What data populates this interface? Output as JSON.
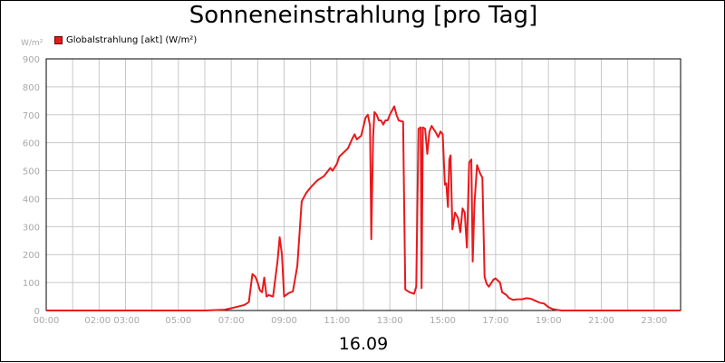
{
  "title": "Sonneneinstrahlung [pro Tag]",
  "unit_label": "W/m²",
  "legend_label": "Globalstrahlung [akt] (W/m²)",
  "date_label": "16.09",
  "colors": {
    "series": "#e8191c",
    "grid": "#c8c8c8",
    "axis_text": "#a8a8a8"
  },
  "chart_data": {
    "type": "line",
    "title": "Sonneneinstrahlung [pro Tag]",
    "ylabel": "W/m²",
    "ylim": [
      0,
      900
    ],
    "yticks": [
      0,
      100,
      200,
      300,
      400,
      500,
      600,
      700,
      800,
      900
    ],
    "xlim": [
      "00:00",
      "24:00"
    ],
    "xticks": [
      "00:00",
      "02:00 03:00",
      "05:00",
      "07:00",
      "09:00",
      "11:00",
      "13:00",
      "15:00",
      "17:00",
      "19:00",
      "21:00",
      "23:00"
    ],
    "grid": true,
    "legend_placement": "top-left",
    "series": [
      {
        "name": "Globalstrahlung [akt] (W/m²)",
        "points": [
          [
            "00:00",
            0
          ],
          [
            "06:00",
            0
          ],
          [
            "06:45",
            3
          ],
          [
            "07:00",
            8
          ],
          [
            "07:15",
            14
          ],
          [
            "07:30",
            20
          ],
          [
            "07:40",
            30
          ],
          [
            "07:48",
            130
          ],
          [
            "07:55",
            120
          ],
          [
            "08:00",
            100
          ],
          [
            "08:05",
            72
          ],
          [
            "08:10",
            65
          ],
          [
            "08:15",
            118
          ],
          [
            "08:20",
            50
          ],
          [
            "08:25",
            55
          ],
          [
            "08:35",
            50
          ],
          [
            "08:45",
            175
          ],
          [
            "08:50",
            262
          ],
          [
            "08:55",
            200
          ],
          [
            "09:00",
            50
          ],
          [
            "09:10",
            62
          ],
          [
            "09:20",
            68
          ],
          [
            "09:30",
            160
          ],
          [
            "09:40",
            390
          ],
          [
            "09:50",
            420
          ],
          [
            "10:00",
            440
          ],
          [
            "10:15",
            465
          ],
          [
            "10:30",
            480
          ],
          [
            "10:45",
            510
          ],
          [
            "10:50",
            500
          ],
          [
            "11:00",
            525
          ],
          [
            "11:05",
            550
          ],
          [
            "11:15",
            565
          ],
          [
            "11:25",
            580
          ],
          [
            "11:35",
            615
          ],
          [
            "11:40",
            630
          ],
          [
            "11:45",
            612
          ],
          [
            "11:55",
            625
          ],
          [
            "12:05",
            690
          ],
          [
            "12:10",
            700
          ],
          [
            "12:15",
            660
          ],
          [
            "12:18",
            255
          ],
          [
            "12:22",
            620
          ],
          [
            "12:25",
            710
          ],
          [
            "12:30",
            700
          ],
          [
            "12:35",
            680
          ],
          [
            "12:40",
            680
          ],
          [
            "12:45",
            665
          ],
          [
            "12:50",
            680
          ],
          [
            "12:55",
            680
          ],
          [
            "13:00",
            700
          ],
          [
            "13:10",
            730
          ],
          [
            "13:15",
            700
          ],
          [
            "13:20",
            680
          ],
          [
            "13:30",
            675
          ],
          [
            "13:35",
            75
          ],
          [
            "13:45",
            65
          ],
          [
            "13:55",
            60
          ],
          [
            "14:00",
            85
          ],
          [
            "14:05",
            650
          ],
          [
            "14:10",
            655
          ],
          [
            "14:12",
            80
          ],
          [
            "14:15",
            655
          ],
          [
            "14:20",
            650
          ],
          [
            "14:25",
            560
          ],
          [
            "14:30",
            640
          ],
          [
            "14:35",
            660
          ],
          [
            "14:45",
            635
          ],
          [
            "14:50",
            620
          ],
          [
            "14:55",
            640
          ],
          [
            "15:00",
            630
          ],
          [
            "15:05",
            450
          ],
          [
            "15:08",
            455
          ],
          [
            "15:12",
            370
          ],
          [
            "15:15",
            540
          ],
          [
            "15:18",
            555
          ],
          [
            "15:22",
            290
          ],
          [
            "15:28",
            350
          ],
          [
            "15:35",
            330
          ],
          [
            "15:40",
            280
          ],
          [
            "15:45",
            365
          ],
          [
            "15:50",
            350
          ],
          [
            "15:55",
            225
          ],
          [
            "16:00",
            530
          ],
          [
            "16:05",
            540
          ],
          [
            "16:08",
            175
          ],
          [
            "16:12",
            380
          ],
          [
            "16:18",
            520
          ],
          [
            "16:25",
            490
          ],
          [
            "16:30",
            475
          ],
          [
            "16:35",
            120
          ],
          [
            "16:40",
            95
          ],
          [
            "16:45",
            85
          ],
          [
            "16:55",
            110
          ],
          [
            "17:00",
            115
          ],
          [
            "17:10",
            100
          ],
          [
            "17:15",
            65
          ],
          [
            "17:25",
            55
          ],
          [
            "17:30",
            45
          ],
          [
            "17:40",
            38
          ],
          [
            "17:50",
            40
          ],
          [
            "18:00",
            40
          ],
          [
            "18:10",
            44
          ],
          [
            "18:20",
            42
          ],
          [
            "18:30",
            35
          ],
          [
            "18:40",
            28
          ],
          [
            "18:50",
            25
          ],
          [
            "19:00",
            12
          ],
          [
            "19:10",
            5
          ],
          [
            "19:20",
            2
          ],
          [
            "19:30",
            0
          ],
          [
            "24:00",
            0
          ]
        ]
      }
    ]
  }
}
